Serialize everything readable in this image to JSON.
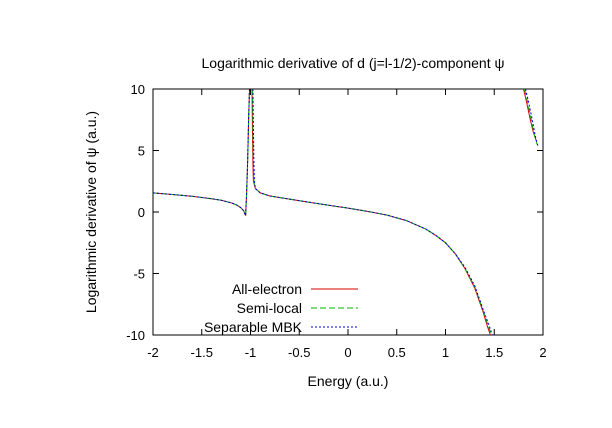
{
  "chart_data": {
    "type": "line",
    "title": "Logarithmic derivative of d (j=l-1/2)-component ψ",
    "xlabel": "Energy (a.u.)",
    "ylabel": "Logarithmic derivative of ψ (a.u.)",
    "xlim": [
      -2,
      2
    ],
    "ylim": [
      -10,
      10
    ],
    "x_ticks": [
      "-2",
      "-1.5",
      "-1",
      "-0.5",
      "0",
      "0.5",
      "1",
      "1.5",
      "2"
    ],
    "y_ticks": [
      "10",
      "5",
      "0",
      "-5",
      "-10"
    ],
    "grid": false,
    "legend_position": "bottom-left",
    "series": [
      {
        "name": "All-electron",
        "color": "#d40000",
        "dash": "none",
        "segments": [
          [
            [
              -2,
              1.55
            ],
            [
              -1.8,
              1.42
            ],
            [
              -1.6,
              1.28
            ],
            [
              -1.4,
              1.08
            ],
            [
              -1.3,
              0.95
            ],
            [
              -1.2,
              0.75
            ],
            [
              -1.15,
              0.6
            ],
            [
              -1.1,
              0.35
            ],
            [
              -1.07,
              0.1
            ],
            [
              -1.05,
              -0.3
            ],
            [
              -1.04,
              1.5
            ],
            [
              -1.03,
              4
            ],
            [
              -1.02,
              7.5
            ],
            [
              -1.01,
              10
            ]
          ],
          [
            [
              -0.985,
              10
            ],
            [
              -0.98,
              7
            ],
            [
              -0.975,
              4
            ],
            [
              -0.97,
              2.5
            ],
            [
              -0.95,
              1.9
            ],
            [
              -0.9,
              1.55
            ],
            [
              -0.8,
              1.3
            ],
            [
              -0.6,
              1.05
            ],
            [
              -0.4,
              0.8
            ],
            [
              -0.2,
              0.55
            ],
            [
              0,
              0.32
            ],
            [
              0.2,
              0.05
            ],
            [
              0.4,
              -0.25
            ],
            [
              0.6,
              -0.7
            ],
            [
              0.8,
              -1.4
            ],
            [
              0.9,
              -1.9
            ],
            [
              1.0,
              -2.5
            ],
            [
              1.1,
              -3.4
            ],
            [
              1.2,
              -4.6
            ],
            [
              1.3,
              -6.2
            ],
            [
              1.38,
              -8
            ],
            [
              1.43,
              -9.3
            ],
            [
              1.46,
              -10
            ]
          ],
          [
            [
              1.8,
              10
            ],
            [
              1.83,
              9
            ],
            [
              1.87,
              7.5
            ],
            [
              1.9,
              6.5
            ],
            [
              1.93,
              5.8
            ]
          ]
        ]
      },
      {
        "name": "Semi-local",
        "color": "#00b400",
        "dash": "6,3",
        "segments": [
          [
            [
              -2,
              1.55
            ],
            [
              -1.8,
              1.42
            ],
            [
              -1.6,
              1.28
            ],
            [
              -1.4,
              1.08
            ],
            [
              -1.3,
              0.95
            ],
            [
              -1.2,
              0.75
            ],
            [
              -1.15,
              0.6
            ],
            [
              -1.1,
              0.35
            ],
            [
              -1.07,
              0.1
            ],
            [
              -1.05,
              -0.3
            ],
            [
              -1.04,
              1.5
            ],
            [
              -1.03,
              4
            ],
            [
              -1.02,
              7.5
            ],
            [
              -1.01,
              10
            ]
          ],
          [
            [
              -0.98,
              10
            ],
            [
              -0.975,
              7
            ],
            [
              -0.97,
              4
            ],
            [
              -0.965,
              2.5
            ],
            [
              -0.95,
              1.9
            ],
            [
              -0.9,
              1.55
            ],
            [
              -0.8,
              1.3
            ],
            [
              -0.6,
              1.05
            ],
            [
              -0.4,
              0.8
            ],
            [
              -0.2,
              0.55
            ],
            [
              0,
              0.32
            ],
            [
              0.2,
              0.05
            ],
            [
              0.4,
              -0.25
            ],
            [
              0.6,
              -0.7
            ],
            [
              0.8,
              -1.4
            ],
            [
              0.9,
              -1.9
            ],
            [
              1.0,
              -2.5
            ],
            [
              1.1,
              -3.4
            ],
            [
              1.2,
              -4.6
            ],
            [
              1.3,
              -6.1
            ],
            [
              1.38,
              -7.9
            ],
            [
              1.44,
              -9.3
            ],
            [
              1.47,
              -10
            ]
          ],
          [
            [
              1.81,
              10
            ],
            [
              1.84,
              9
            ],
            [
              1.88,
              7.5
            ],
            [
              1.91,
              6.3
            ],
            [
              1.94,
              5.5
            ]
          ]
        ]
      },
      {
        "name": "Separable MBK",
        "color": "#0000d4",
        "dash": "2,2",
        "segments": [
          [
            [
              -2,
              1.55
            ],
            [
              -1.8,
              1.42
            ],
            [
              -1.6,
              1.28
            ],
            [
              -1.4,
              1.08
            ],
            [
              -1.3,
              0.95
            ],
            [
              -1.2,
              0.75
            ],
            [
              -1.15,
              0.6
            ],
            [
              -1.1,
              0.35
            ],
            [
              -1.07,
              0.1
            ],
            [
              -1.05,
              -0.3
            ],
            [
              -1.04,
              1.5
            ],
            [
              -1.03,
              4
            ],
            [
              -1.02,
              7.5
            ],
            [
              -1.01,
              10
            ]
          ],
          [
            [
              -0.975,
              10
            ],
            [
              -0.97,
              7
            ],
            [
              -0.965,
              4
            ],
            [
              -0.96,
              2.5
            ],
            [
              -0.95,
              1.9
            ],
            [
              -0.9,
              1.55
            ],
            [
              -0.8,
              1.3
            ],
            [
              -0.6,
              1.05
            ],
            [
              -0.4,
              0.8
            ],
            [
              -0.2,
              0.55
            ],
            [
              0,
              0.32
            ],
            [
              0.2,
              0.05
            ],
            [
              0.4,
              -0.25
            ],
            [
              0.6,
              -0.7
            ],
            [
              0.8,
              -1.4
            ],
            [
              0.9,
              -1.9
            ],
            [
              1.0,
              -2.5
            ],
            [
              1.1,
              -3.4
            ],
            [
              1.2,
              -4.5
            ],
            [
              1.3,
              -6.0
            ],
            [
              1.38,
              -7.8
            ],
            [
              1.45,
              -9.3
            ],
            [
              1.48,
              -10
            ]
          ],
          [
            [
              1.82,
              10
            ],
            [
              1.85,
              9
            ],
            [
              1.89,
              7.5
            ],
            [
              1.92,
              6.2
            ],
            [
              1.95,
              5.3
            ]
          ]
        ]
      }
    ]
  }
}
